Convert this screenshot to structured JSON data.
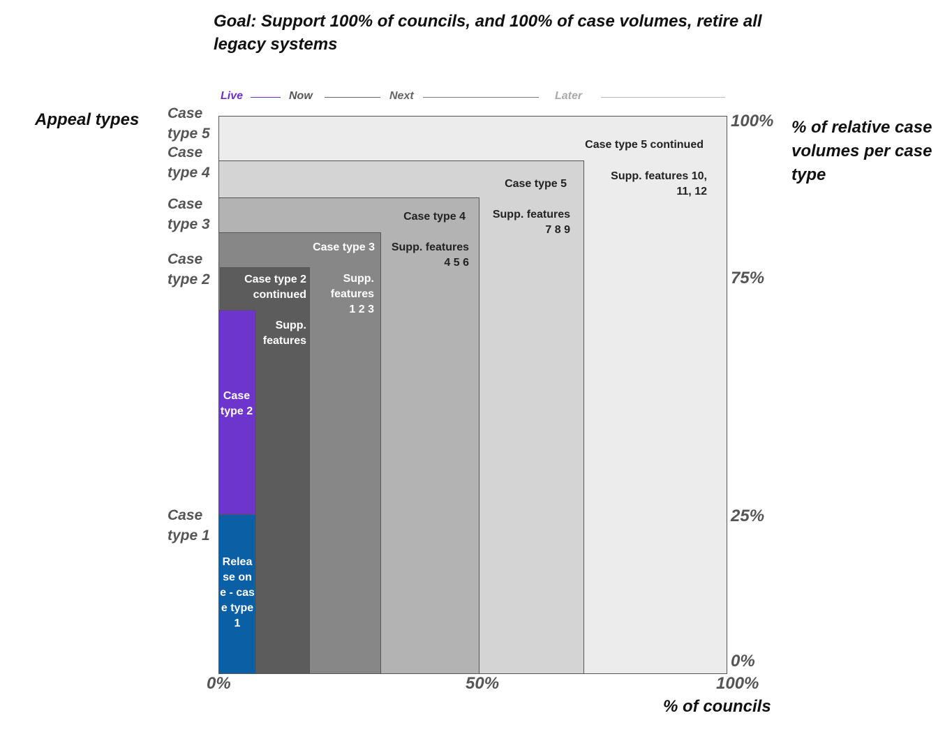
{
  "goal": "Goal: Support 100% of councils, and 100% of case volumes, retire all legacy systems",
  "appeal_types_heading": "Appeal types",
  "relative_volumes_heading": "% of relative case volumes per case type",
  "councils_heading": "% of councils",
  "phases": {
    "live": {
      "label": "Live",
      "color": "#6d30cc"
    },
    "now": {
      "label": "Now",
      "color": "#555555"
    },
    "next": {
      "label": "Next",
      "color": "#666666"
    },
    "later": {
      "label": "Later",
      "color": "#aaaaaa"
    }
  },
  "y_axis_case_labels": {
    "case5": {
      "line1": "Case",
      "line2": "type 5"
    },
    "case4": {
      "line1": "Case",
      "line2": "type 4"
    },
    "case3": {
      "line1": "Case",
      "line2": "type 3"
    },
    "case2": {
      "line1": "Case",
      "line2": "type 2"
    },
    "case1": {
      "line1": "Case",
      "line2": "type 1"
    }
  },
  "y_ticks": {
    "p100": "100%",
    "p75": "75%",
    "p25": "25%",
    "p0": "0%"
  },
  "x_ticks": {
    "p0": "0%",
    "p50": "50%",
    "p100": "100%"
  },
  "blocks": {
    "b1": {
      "title": "Case type 5 continued",
      "sub": "Supp. features 10, 11, 12",
      "color": "#ececec"
    },
    "b2": {
      "title": "Case type 5",
      "sub": "Supp. features 7 8 9",
      "color": "#d4d4d4"
    },
    "b3": {
      "title": "Case type 4",
      "sub": "Supp. features 4 5 6",
      "color": "#b3b3b3"
    },
    "b4": {
      "title": "Case type 3",
      "sub": "Supp. features 1 2 3",
      "color": "#878787"
    },
    "b5": {
      "title": "Case type 2 continued",
      "sub": "Supp. features",
      "color": "#5c5c5c"
    },
    "b6": {
      "title": "Case type 2",
      "color": "#6d35cc"
    },
    "b7": {
      "title": "Release one - case type 1",
      "color": "#0b5fa5"
    }
  }
}
